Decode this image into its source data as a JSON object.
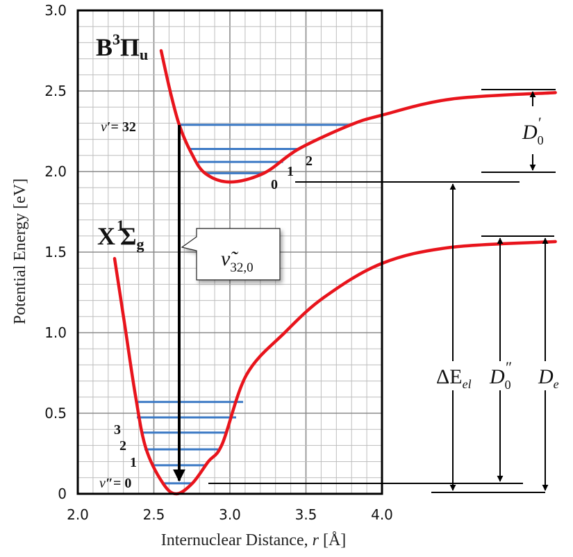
{
  "axes": {
    "xlabel_main": "Internuclear Distance, ",
    "xlabel_var": "r",
    "xlabel_unit": " [Å]",
    "ylabel": "Potential Energy [eV]",
    "xticks": [
      "2.0",
      "2.5",
      "3.0",
      "3.5",
      "4.0"
    ],
    "yticks": [
      "0",
      "0.5",
      "1.0",
      "1.5",
      "2.0",
      "2.5",
      "3.0"
    ],
    "xlim": [
      2.0,
      4.0
    ],
    "ylim": [
      0,
      3.0
    ],
    "grid": true
  },
  "colors": {
    "curve": "#e8141c",
    "level": "#3a78c4",
    "grid": "#bdbdbd",
    "grid_major": "#8a8a8a"
  },
  "states": {
    "upper": {
      "letter": "B",
      "mult": "3",
      "sym": "Π",
      "sub": "u"
    },
    "lower": {
      "letter": "X",
      "mult": "1",
      "sym": "Σ",
      "sub": "g"
    }
  },
  "curves": {
    "upper": [
      [
        2.548,
        2.75
      ],
      [
        2.607,
        2.5
      ],
      [
        2.667,
        2.29
      ],
      [
        2.744,
        2.12
      ],
      [
        2.836,
        1.99
      ],
      [
        3.0,
        1.935
      ],
      [
        3.224,
        1.99
      ],
      [
        3.452,
        2.14
      ],
      [
        3.795,
        2.29
      ],
      [
        4.0,
        2.35
      ],
      [
        4.457,
        2.45
      ],
      [
        5.14,
        2.49
      ]
    ],
    "lower": [
      [
        2.242,
        1.46
      ],
      [
        2.31,
        1.04
      ],
      [
        2.379,
        0.61
      ],
      [
        2.447,
        0.285
      ],
      [
        2.56,
        0.065
      ],
      [
        2.648,
        0.0
      ],
      [
        2.753,
        0.065
      ],
      [
        2.858,
        0.2
      ],
      [
        2.95,
        0.31
      ],
      [
        3.11,
        0.74
      ],
      [
        3.36,
        1.0
      ],
      [
        3.62,
        1.22
      ],
      [
        4.0,
        1.43
      ],
      [
        4.457,
        1.53
      ],
      [
        5.14,
        1.565
      ]
    ]
  },
  "levels": {
    "upper": [
      {
        "E": 1.99,
        "r": [
          2.84,
          3.22
        ]
      },
      {
        "E": 2.06,
        "r": [
          2.79,
          3.35
        ]
      },
      {
        "E": 2.14,
        "r": [
          2.74,
          3.45
        ]
      },
      {
        "E": 2.29,
        "r": [
          2.667,
          3.795
        ]
      }
    ],
    "lower": [
      {
        "E": 0.065,
        "r": [
          2.56,
          2.753
        ]
      },
      {
        "E": 0.177,
        "r": [
          2.489,
          2.845
        ]
      },
      {
        "E": 0.276,
        "r": [
          2.438,
          2.922
        ]
      },
      {
        "E": 0.38,
        "r": [
          2.415,
          2.982
        ]
      },
      {
        "E": 0.474,
        "r": [
          2.388,
          3.041
        ]
      },
      {
        "E": 0.57,
        "r": [
          2.379,
          3.087
        ]
      }
    ]
  },
  "level_labels": {
    "upper_top": {
      "v": "v",
      "prime": "′",
      "eq": "= 32"
    },
    "upper": [
      "0",
      "1",
      "2"
    ],
    "lower_bottom": {
      "v": "v",
      "prime": "″",
      "eq": "= 0"
    },
    "lower": [
      "1",
      "2",
      "3"
    ]
  },
  "transition": {
    "label_nu": "ν̃",
    "label_sub": "32,0"
  },
  "energies": {
    "D0_upper": {
      "main": "D",
      "sub": "0",
      "prime": "′"
    },
    "dE_el": {
      "main": "ΔE",
      "sub": "el"
    },
    "D0_lower": {
      "main": "D",
      "sub": "0",
      "prime": "″"
    },
    "De": {
      "main": "D",
      "sub": "e"
    }
  }
}
